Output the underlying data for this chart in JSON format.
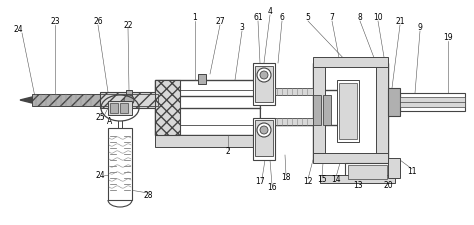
{
  "bg_color": "#ffffff",
  "lc": "#444444",
  "hatch_gray": "#999999",
  "light_gray": "#d8d8d8",
  "med_gray": "#b0b0b0",
  "dark_gray": "#777777"
}
